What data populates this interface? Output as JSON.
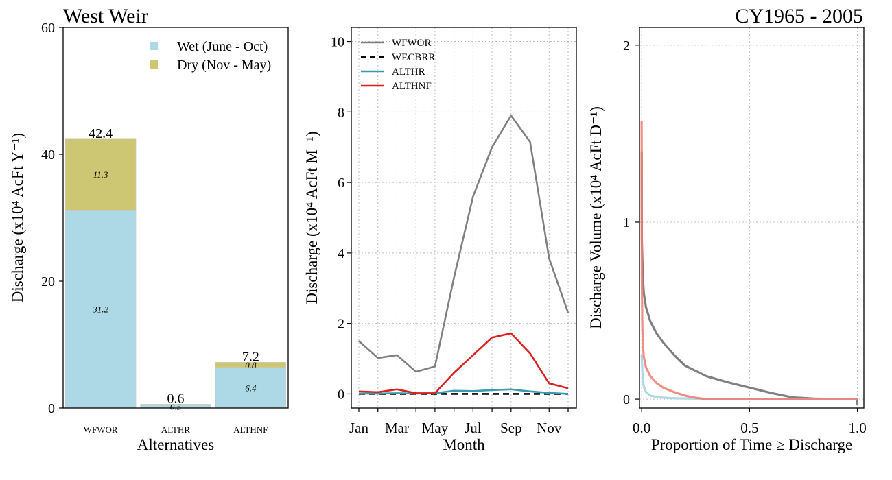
{
  "header": {
    "site_title": "West Weir",
    "period_title": "CY1965 - 2005"
  },
  "chart_data": [
    {
      "type": "bar",
      "stacked": true,
      "categories": [
        "WFWOR",
        "ALTHR",
        "ALTHNF"
      ],
      "series": [
        {
          "name": "Wet (June - Oct)",
          "values": [
            31.2,
            0.5,
            6.4
          ],
          "color": "#add8e6"
        },
        {
          "name": "Dry (Nov - May)",
          "values": [
            11.3,
            0.1,
            0.8
          ],
          "color": "#cdc673"
        }
      ],
      "segment_labels": [
        [
          "31.2",
          "0.5",
          "6.4"
        ],
        [
          "11.3",
          "",
          "0.8"
        ]
      ],
      "totals": [
        42.4,
        0.6,
        7.2
      ],
      "total_labels": [
        "42.4",
        "0.6",
        "7.2"
      ],
      "xlabel": "Alternatives",
      "ylabel": "Discharge (x10⁴ AcFt Y⁻¹)",
      "ylim": [
        0,
        60
      ],
      "yticks": [
        0,
        20,
        40,
        60
      ],
      "legend_placement": "top-right",
      "grid": false
    },
    {
      "type": "line",
      "x": [
        1,
        2,
        3,
        4,
        5,
        6,
        7,
        8,
        9,
        10,
        11,
        12
      ],
      "xtick_values": [
        1,
        3,
        5,
        7,
        9,
        11
      ],
      "xtick_labels": [
        "Jan",
        "Mar",
        "May",
        "Jul",
        "Sep",
        "Nov"
      ],
      "series": [
        {
          "name": "WFWOR",
          "color": "#808080",
          "dash": "solid",
          "values": [
            1.5,
            1.02,
            1.1,
            0.63,
            0.78,
            3.3,
            5.6,
            7.0,
            7.9,
            7.15,
            3.85,
            2.3
          ]
        },
        {
          "name": "WECBRR",
          "color": "#000000",
          "dash": "dashed",
          "values": [
            0,
            0,
            0,
            0,
            0,
            0,
            0,
            0,
            0,
            0,
            0,
            0
          ]
        },
        {
          "name": "ALTHR",
          "color": "#3a9ab0",
          "dash": "solid",
          "values": [
            0.01,
            0.01,
            0.02,
            0.01,
            0.02,
            0.09,
            0.08,
            0.11,
            0.13,
            0.07,
            0.03,
            0.0
          ]
        },
        {
          "name": "ALTHNF",
          "color": "#dd1f1f",
          "dash": "solid",
          "values": [
            0.07,
            0.05,
            0.13,
            0.02,
            0.02,
            0.6,
            1.1,
            1.6,
            1.72,
            1.15,
            0.3,
            0.16
          ]
        }
      ],
      "xlabel": "Month",
      "ylabel": "Discharge (x10⁴ AcFt M⁻¹)",
      "ylim": [
        -0.4,
        10.4
      ],
      "yticks": [
        0,
        2,
        4,
        6,
        8,
        10
      ],
      "legend_placement": "top-left",
      "grid": true
    },
    {
      "type": "line",
      "subtype": "exceedance",
      "series": [
        {
          "name": "WFWOR",
          "color": "#808080",
          "opacity": 1,
          "points": [
            [
              0,
              1.4
            ],
            [
              0.001,
              0.9
            ],
            [
              0.005,
              0.7
            ],
            [
              0.01,
              0.6
            ],
            [
              0.02,
              0.52
            ],
            [
              0.04,
              0.44
            ],
            [
              0.07,
              0.37
            ],
            [
              0.1,
              0.32
            ],
            [
              0.15,
              0.25
            ],
            [
              0.2,
              0.19
            ],
            [
              0.3,
              0.13
            ],
            [
              0.4,
              0.095
            ],
            [
              0.5,
              0.065
            ],
            [
              0.6,
              0.035
            ],
            [
              0.7,
              0.01
            ],
            [
              0.8,
              0.003
            ],
            [
              0.9,
              0.001
            ],
            [
              0.999,
              0.0
            ],
            [
              1.0,
              -0.03
            ]
          ]
        },
        {
          "name": "ALTHR",
          "color": "#add8e6",
          "opacity": 1,
          "points": [
            [
              0,
              0.25
            ],
            [
              0.002,
              0.2
            ],
            [
              0.005,
              0.12
            ],
            [
              0.01,
              0.07
            ],
            [
              0.02,
              0.04
            ],
            [
              0.04,
              0.02
            ],
            [
              0.08,
              0.01
            ],
            [
              0.15,
              0.005
            ],
            [
              0.3,
              0.002
            ],
            [
              0.5,
              0.0
            ],
            [
              1.0,
              0.0
            ]
          ]
        },
        {
          "name": "ALTHNF",
          "color": "#ef7b70",
          "opacity": 0.85,
          "points": [
            [
              0,
              1.57
            ],
            [
              0.001,
              0.7
            ],
            [
              0.003,
              0.42
            ],
            [
              0.006,
              0.3
            ],
            [
              0.01,
              0.24
            ],
            [
              0.02,
              0.18
            ],
            [
              0.04,
              0.13
            ],
            [
              0.07,
              0.09
            ],
            [
              0.1,
              0.065
            ],
            [
              0.15,
              0.04
            ],
            [
              0.2,
              0.02
            ],
            [
              0.25,
              0.008
            ],
            [
              0.3,
              0.0
            ],
            [
              1.0,
              0.0
            ]
          ]
        }
      ],
      "xlabel": "Proportion of Time ≥ Discharge",
      "ylabel": "Discharge Volume (x10⁴ AcFt D⁻¹)",
      "xlim": [
        -0.01,
        1.03
      ],
      "ylim": [
        -0.05,
        2.1
      ],
      "xticks": [
        0,
        0.5,
        1
      ],
      "xtick_labels": [
        "0.0",
        "0.5",
        "1.0"
      ],
      "yticks": [
        0,
        1,
        2
      ],
      "grid": true
    }
  ]
}
